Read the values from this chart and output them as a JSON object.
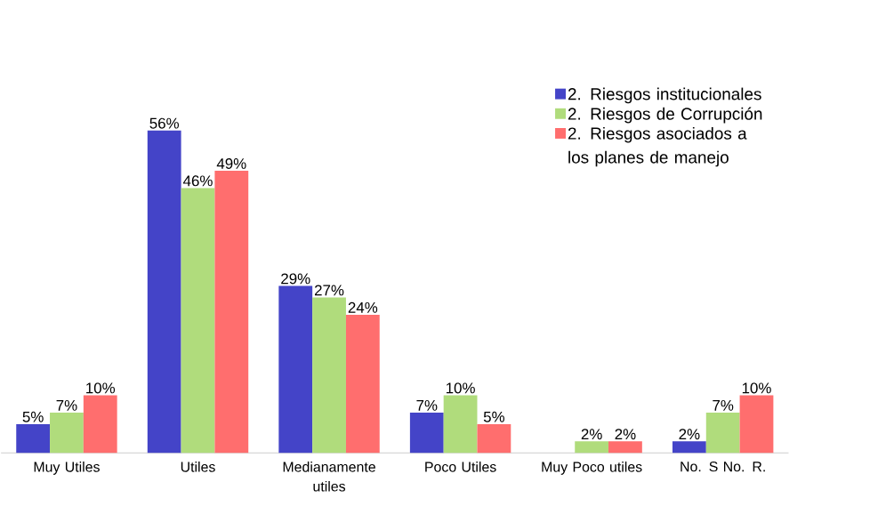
{
  "chart_data": {
    "type": "bar",
    "categories": [
      "Muy Utiles",
      "Utiles",
      "Medianamente utiles",
      "Poco Utiles",
      "Muy Poco utiles",
      "No. S No. R."
    ],
    "series": [
      {
        "name": "2. Riesgos institucionales",
        "color": "#4444c8",
        "values": [
          5,
          56,
          29,
          7,
          null,
          2
        ],
        "value_labels": [
          "5%",
          "56%",
          "29%",
          "7%",
          null,
          "2%"
        ]
      },
      {
        "name": "2.   Riesgos de Corrupción",
        "color": "#b0dc7c",
        "values": [
          7,
          46,
          27,
          10,
          2,
          7
        ],
        "value_labels": [
          "7%",
          "46%",
          "27%",
          "10%",
          "2%",
          "7%"
        ]
      },
      {
        "name": "2. Riesgos asociados a los planes de manejo",
        "color": "#ff6e6e",
        "values": [
          10,
          49,
          24,
          5,
          2,
          10
        ],
        "value_labels": [
          "10%",
          "49%",
          "24%",
          "5%",
          "2%",
          "10%"
        ]
      }
    ],
    "legend": "top right"
  }
}
